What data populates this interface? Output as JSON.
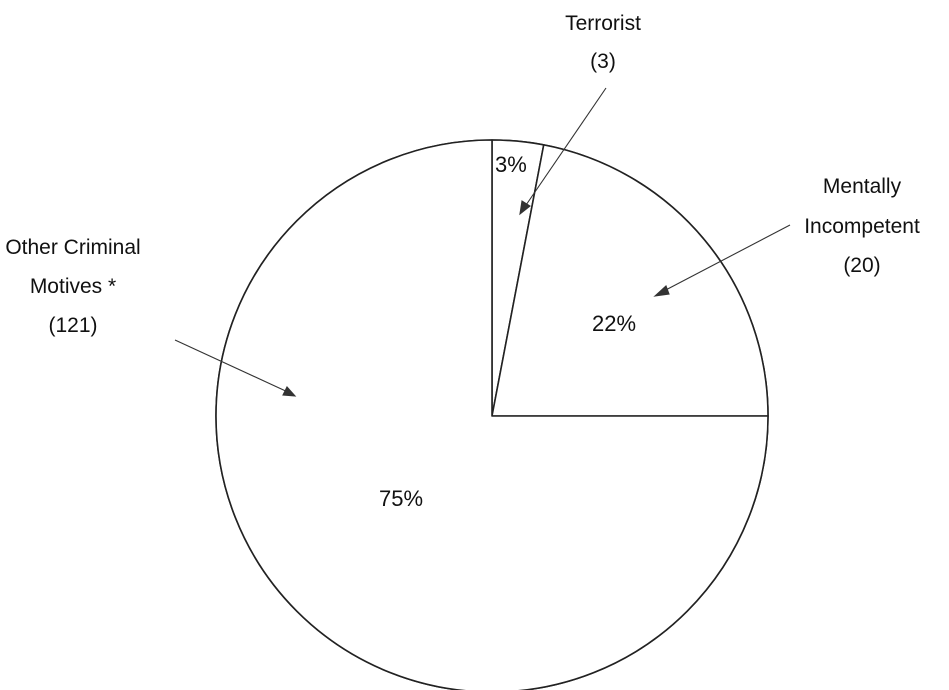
{
  "chart_data": {
    "type": "pie",
    "title": "",
    "slices": [
      {
        "key": "terrorist",
        "label": "Terrorist",
        "count_label": "(3)",
        "count": 3,
        "percent_label": "3%",
        "value": 3
      },
      {
        "key": "mental",
        "label_lines": [
          "Mentally",
          "Incompetent"
        ],
        "count_label": "(20)",
        "count": 20,
        "percent_label": "22%",
        "value": 22
      },
      {
        "key": "other",
        "label_lines": [
          "Other Criminal",
          "Motives *"
        ],
        "count_label": "(121)",
        "count": 121,
        "percent_label": "75%",
        "value": 75
      }
    ],
    "start_angle": "12 o'clock",
    "direction": "clockwise",
    "legend": "none"
  }
}
